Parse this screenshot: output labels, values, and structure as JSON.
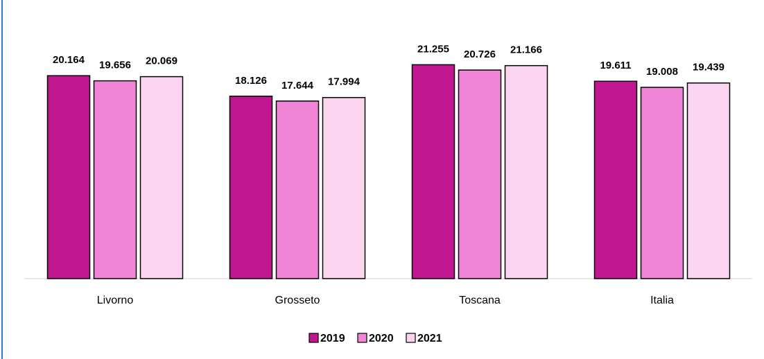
{
  "chart_data": {
    "type": "bar",
    "categories": [
      "Livorno",
      "Grosseto",
      "Toscana",
      "Italia"
    ],
    "series": [
      {
        "name": "2019",
        "color": "#c0168f",
        "values": [
          20.164,
          18.126,
          21.255,
          19.611
        ]
      },
      {
        "name": "2020",
        "color": "#f085d8",
        "values": [
          19.656,
          17.644,
          20.726,
          19.008
        ]
      },
      {
        "name": "2021",
        "color": "#fbd5ef",
        "values": [
          20.069,
          17.994,
          21.166,
          19.439
        ]
      }
    ],
    "ylim": [
      0,
      25
    ],
    "legend": "bottom"
  }
}
